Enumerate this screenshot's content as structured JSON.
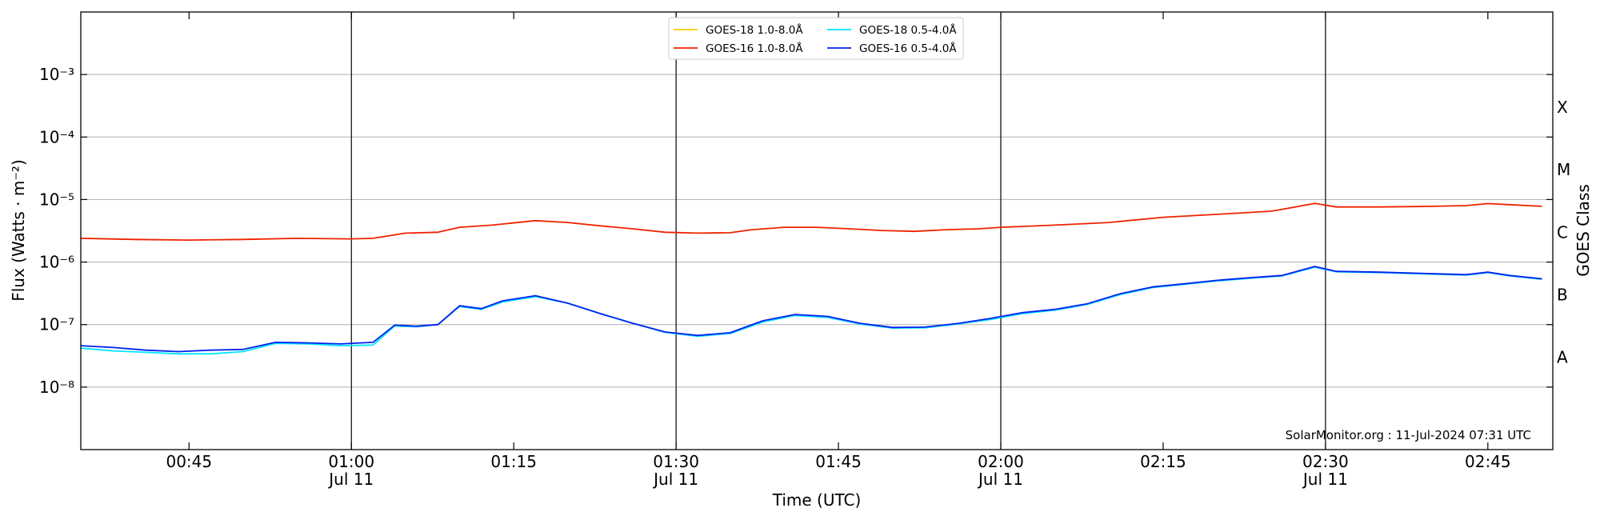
{
  "chart_data": {
    "type": "line",
    "y_scale": "log",
    "ylim": [
      1e-09,
      0.01
    ],
    "xlim": [
      "00:35",
      "02:51"
    ],
    "xlabel": "Time (UTC)",
    "ylabel": "Flux (Watts · m⁻²)",
    "right_ylabel": "GOES Class",
    "grid": "horizontal",
    "legend_position": "top-center",
    "y_ticks": [
      {
        "value": 1e-08,
        "label": "10⁻⁸"
      },
      {
        "value": 1e-07,
        "label": "10⁻⁷"
      },
      {
        "value": 1e-06,
        "label": "10⁻⁶"
      },
      {
        "value": 1e-05,
        "label": "10⁻⁵"
      },
      {
        "value": 0.0001,
        "label": "10⁻⁴"
      },
      {
        "value": 0.001,
        "label": "10⁻³"
      }
    ],
    "x_ticks": [
      {
        "time": "00:45",
        "label": "00:45",
        "sublabel": ""
      },
      {
        "time": "01:00",
        "label": "01:00",
        "sublabel": "Jul 11"
      },
      {
        "time": "01:15",
        "label": "01:15",
        "sublabel": ""
      },
      {
        "time": "01:30",
        "label": "01:30",
        "sublabel": "Jul 11"
      },
      {
        "time": "01:45",
        "label": "01:45",
        "sublabel": ""
      },
      {
        "time": "02:00",
        "label": "02:00",
        "sublabel": "Jul 11"
      },
      {
        "time": "02:15",
        "label": "02:15",
        "sublabel": ""
      },
      {
        "time": "02:30",
        "label": "02:30",
        "sublabel": "Jul 11"
      },
      {
        "time": "02:45",
        "label": "02:45",
        "sublabel": ""
      }
    ],
    "vertical_lines": [
      "01:00",
      "01:30",
      "02:00",
      "02:30"
    ],
    "goes_classes": [
      {
        "label": "A",
        "value": 3e-08
      },
      {
        "label": "B",
        "value": 3e-07
      },
      {
        "label": "C",
        "value": 3e-06
      },
      {
        "label": "M",
        "value": 3e-05
      },
      {
        "label": "X",
        "value": 0.0003
      }
    ],
    "series": [
      {
        "name": "GOES-18 1.0-8.0Å",
        "color": "#ffcc00",
        "x": [],
        "values": []
      },
      {
        "name": "GOES-16 1.0-8.0Å",
        "color": "#ee2200",
        "x": [
          "00:35",
          "00:40",
          "00:45",
          "00:50",
          "00:55",
          "01:00",
          "01:02",
          "01:05",
          "01:08",
          "01:10",
          "01:13",
          "01:17",
          "01:20",
          "01:23",
          "01:26",
          "01:29",
          "01:32",
          "01:35",
          "01:37",
          "01:40",
          "01:43",
          "01:46",
          "01:49",
          "01:52",
          "01:55",
          "01:58",
          "02:00",
          "02:05",
          "02:10",
          "02:15",
          "02:20",
          "02:25",
          "02:27",
          "02:29",
          "02:31",
          "02:35",
          "02:40",
          "02:43",
          "02:45",
          "02:47",
          "02:50"
        ],
        "values": [
          2.4e-06,
          2.3e-06,
          2.25e-06,
          2.3e-06,
          2.4e-06,
          2.35e-06,
          2.4e-06,
          2.9e-06,
          3e-06,
          3.6e-06,
          3.9e-06,
          4.6e-06,
          4.3e-06,
          3.8e-06,
          3.4e-06,
          3e-06,
          2.9e-06,
          2.95e-06,
          3.3e-06,
          3.6e-06,
          3.6e-06,
          3.4e-06,
          3.2e-06,
          3.1e-06,
          3.3e-06,
          3.4e-06,
          3.6e-06,
          3.9e-06,
          4.3e-06,
          5.2e-06,
          5.8e-06,
          6.5e-06,
          7.5e-06,
          8.7e-06,
          7.6e-06,
          7.6e-06,
          7.8e-06,
          8e-06,
          8.6e-06,
          8.3e-06,
          7.8e-06
        ]
      },
      {
        "name": "GOES-18 0.5-4.0Å",
        "color": "#00e5ff",
        "x": [
          "00:35",
          "00:38",
          "00:41",
          "00:44",
          "00:47",
          "00:50",
          "00:53",
          "00:56",
          "00:59",
          "01:02",
          "01:04",
          "01:06",
          "01:08",
          "01:10",
          "01:12",
          "01:14",
          "01:17",
          "01:20",
          "01:23",
          "01:26",
          "01:29",
          "01:32",
          "01:35",
          "01:38",
          "01:41",
          "01:44",
          "01:47",
          "01:50",
          "01:53",
          "01:56",
          "01:59",
          "02:02",
          "02:05",
          "02:08",
          "02:11",
          "02:14",
          "02:17",
          "02:20",
          "02:23",
          "02:26",
          "02:29",
          "02:31",
          "02:35",
          "02:40",
          "02:43",
          "02:45",
          "02:47",
          "02:50"
        ],
        "values": [
          4.2e-08,
          3.8e-08,
          3.6e-08,
          3.4e-08,
          3.4e-08,
          3.7e-08,
          5e-08,
          4.9e-08,
          4.6e-08,
          4.7e-08,
          9.5e-08,
          9.2e-08,
          1e-07,
          1.95e-07,
          1.75e-07,
          2.3e-07,
          2.8e-07,
          2.2e-07,
          1.5e-07,
          1.05e-07,
          7.5e-08,
          6.5e-08,
          7.2e-08,
          1.1e-07,
          1.4e-07,
          1.3e-07,
          1.02e-07,
          8.8e-08,
          8.9e-08,
          1.02e-07,
          1.2e-07,
          1.5e-07,
          1.7e-07,
          2.1e-07,
          3e-07,
          3.9e-07,
          4.4e-07,
          5e-07,
          5.5e-07,
          6e-07,
          8.3e-07,
          7e-07,
          6.8e-07,
          6.4e-07,
          6.2e-07,
          6.8e-07,
          6e-07,
          5.3e-07
        ]
      },
      {
        "name": "GOES-16 0.5-4.0Å",
        "color": "#0022ee",
        "x": [
          "00:35",
          "00:38",
          "00:41",
          "00:44",
          "00:47",
          "00:50",
          "00:53",
          "00:56",
          "00:59",
          "01:02",
          "01:04",
          "01:06",
          "01:08",
          "01:10",
          "01:12",
          "01:14",
          "01:17",
          "01:20",
          "01:23",
          "01:26",
          "01:29",
          "01:32",
          "01:35",
          "01:38",
          "01:41",
          "01:44",
          "01:47",
          "01:50",
          "01:53",
          "01:56",
          "01:59",
          "02:02",
          "02:05",
          "02:08",
          "02:11",
          "02:14",
          "02:17",
          "02:20",
          "02:23",
          "02:26",
          "02:29",
          "02:31",
          "02:35",
          "02:40",
          "02:43",
          "02:45",
          "02:47",
          "02:50"
        ],
        "values": [
          4.6e-08,
          4.3e-08,
          3.9e-08,
          3.7e-08,
          3.9e-08,
          4e-08,
          5.2e-08,
          5.1e-08,
          4.9e-08,
          5.2e-08,
          9.8e-08,
          9.4e-08,
          1e-07,
          2e-07,
          1.8e-07,
          2.4e-07,
          2.9e-07,
          2.2e-07,
          1.5e-07,
          1.05e-07,
          7.6e-08,
          6.7e-08,
          7.4e-08,
          1.15e-07,
          1.45e-07,
          1.35e-07,
          1.05e-07,
          9e-08,
          9.1e-08,
          1.04e-07,
          1.25e-07,
          1.55e-07,
          1.75e-07,
          2.15e-07,
          3.1e-07,
          4e-07,
          4.5e-07,
          5.1e-07,
          5.6e-07,
          6.1e-07,
          8.5e-07,
          7.1e-07,
          6.9e-07,
          6.5e-07,
          6.3e-07,
          6.9e-07,
          6.1e-07,
          5.4e-07
        ]
      }
    ],
    "annotation": "SolarMonitor.org : 11-Jul-2024 07:31 UTC"
  }
}
